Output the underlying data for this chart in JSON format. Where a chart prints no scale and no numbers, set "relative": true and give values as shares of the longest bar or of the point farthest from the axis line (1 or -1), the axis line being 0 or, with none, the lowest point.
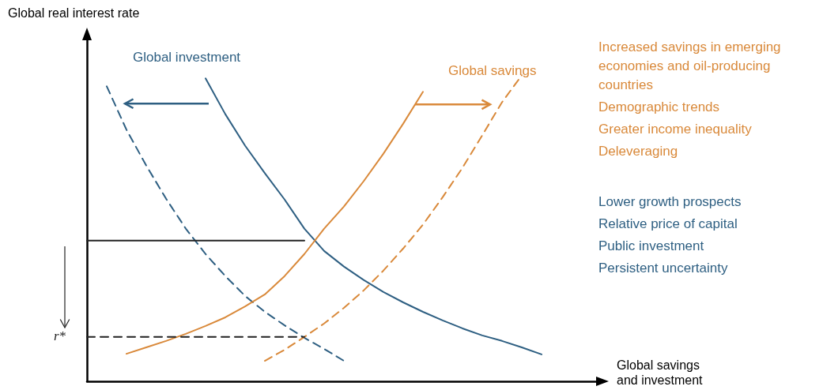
{
  "chart_data": {
    "type": "line",
    "relative": true,
    "ylabel": "Global real interest rate",
    "xlabel": "Global savings\nand investment",
    "categories": [
      null,
      null,
      null,
      null,
      null,
      null,
      null,
      null,
      null,
      null,
      null,
      null,
      null,
      null,
      null,
      null,
      null,
      null,
      null,
      null,
      null,
      null,
      null,
      null,
      null,
      null,
      null
    ],
    "series": [
      {
        "name": "Global investment",
        "color": "#2e5f82",
        "line_style": "solid",
        "values": [
          null,
          null,
          null,
          null,
          null,
          null,
          0.99,
          0.873,
          0.77,
          0.68,
          0.594,
          0.499,
          0.426,
          0.375,
          0.331,
          0.292,
          0.258,
          0.227,
          0.199,
          0.173,
          0.15,
          0.132,
          0.111,
          0.088,
          null,
          null,
          null
        ]
      },
      {
        "color": "#2e5f82",
        "line_style": "dashed",
        "values": [
          null,
          0.964,
          0.822,
          0.705,
          0.597,
          0.499,
          0.416,
          0.344,
          0.279,
          0.227,
          0.183,
          0.142,
          0.106,
          0.067,
          null,
          null,
          null,
          null,
          null,
          null,
          null,
          null,
          null,
          null,
          null,
          null,
          null
        ]
      },
      {
        "name": "Global savings",
        "color": "#d9893a",
        "line_style": "solid",
        "values": [
          null,
          null,
          0.09,
          0.111,
          0.132,
          0.155,
          0.181,
          0.209,
          0.245,
          0.284,
          0.344,
          0.416,
          0.499,
          0.571,
          0.654,
          0.744,
          0.842,
          0.946,
          null,
          null,
          null,
          null,
          null,
          null,
          null,
          null,
          null
        ]
      },
      {
        "color": "#d9893a",
        "line_style": "dashed",
        "values": [
          null,
          null,
          null,
          null,
          null,
          null,
          null,
          null,
          null,
          0.067,
          0.103,
          0.145,
          0.189,
          0.24,
          0.297,
          0.362,
          0.434,
          0.512,
          0.602,
          0.698,
          0.804,
          0.912,
          1.0,
          null,
          null,
          null,
          null
        ]
      },
      {
        "color": "#222222",
        "line_style": "solid",
        "values": [
          0.46,
          0.46,
          0.46,
          0.46,
          0.46,
          0.46,
          0.46,
          0.46,
          0.46,
          0.46,
          0.46,
          0.46,
          null,
          null,
          null,
          null,
          null,
          null,
          null,
          null,
          null,
          null,
          null,
          null,
          null,
          null,
          null
        ]
      },
      {
        "color": "#222222",
        "line_style": "dashed",
        "values": [
          0.145,
          0.145,
          0.145,
          0.145,
          0.145,
          0.145,
          0.145,
          0.145,
          0.145,
          0.145,
          0.145,
          0.145,
          null,
          null,
          null,
          null,
          null,
          null,
          null,
          null,
          null,
          null,
          null,
          null,
          null,
          null,
          null
        ]
      }
    ],
    "annotations": [
      "r*",
      "Increased savings in emerging economies and oil-producing countries",
      "Demographic trends",
      "Greater income inequality",
      "Deleveraging",
      "Lower growth prospects",
      "Relative price of capital",
      "Public investment",
      "Persistent uncertainty"
    ],
    "marker": "none"
  }
}
